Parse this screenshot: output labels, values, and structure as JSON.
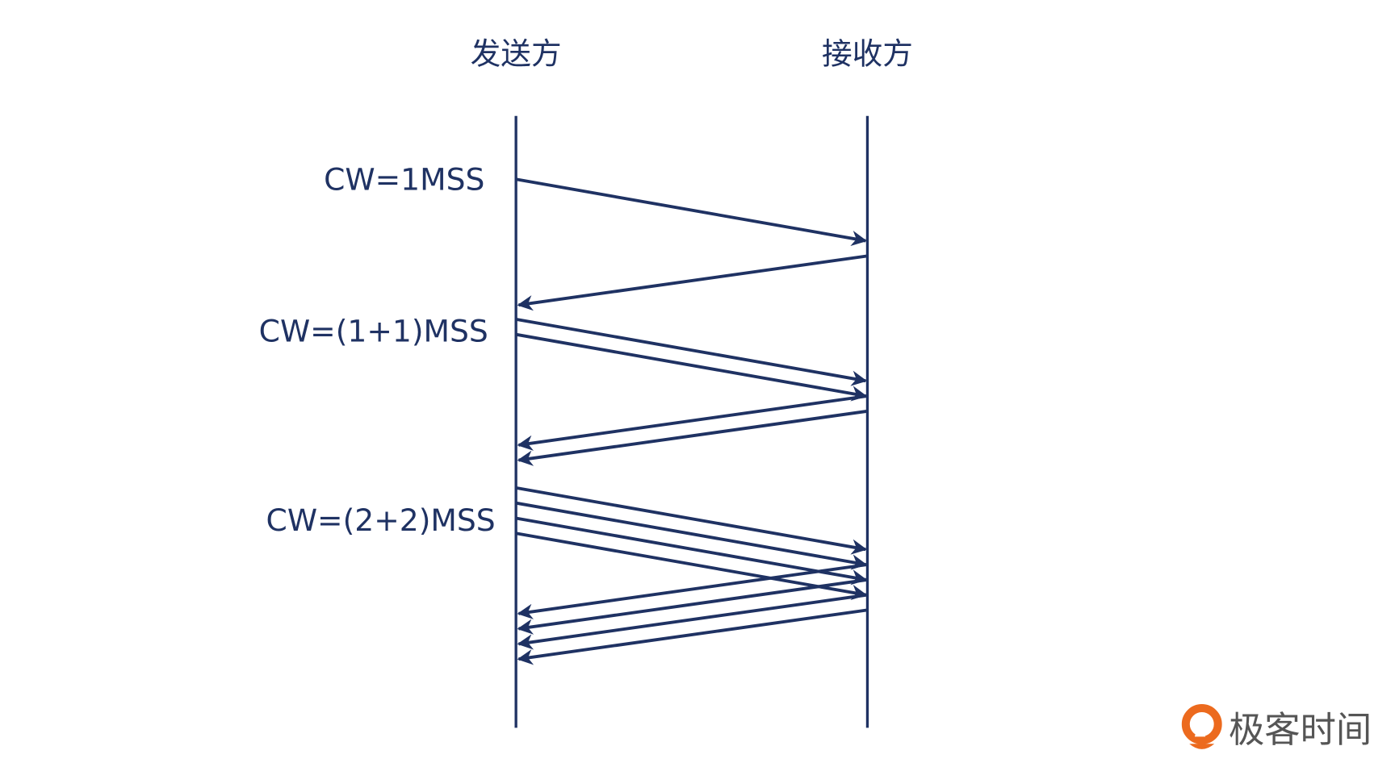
{
  "participants": {
    "sender": "发送方",
    "receiver": "接收方"
  },
  "rounds": [
    {
      "label": "CW=1MSS",
      "segments": 1
    },
    {
      "label": "CW=(1+1)MSS",
      "segments": 2
    },
    {
      "label": "CW=(2+2)MSS",
      "segments": 4
    }
  ],
  "logo": {
    "text": "极客时间",
    "color": "#e8651d"
  },
  "colors": {
    "line": "#1f3263",
    "logo_text": "#555555"
  }
}
